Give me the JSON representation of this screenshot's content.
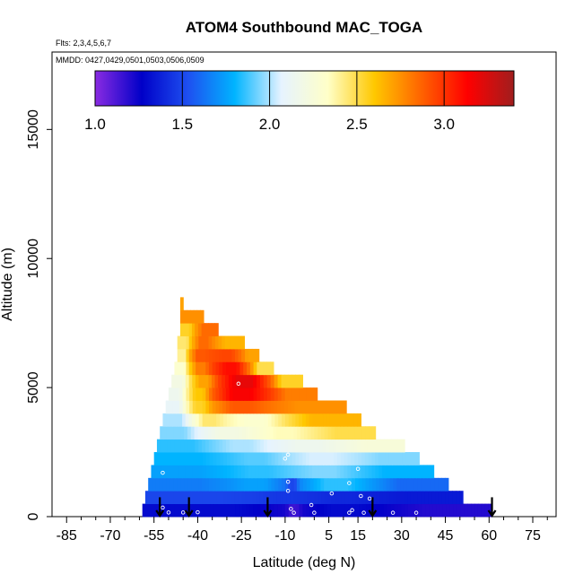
{
  "chart_data": {
    "type": "heatmap",
    "title": "ATOM4 Southbound MAC_TOGA",
    "annotations": {
      "flights": "Flts: 2,3,4,5,6,7",
      "dates": "MMDD: 0427,0429,0501,0503,0506,0509"
    },
    "xlabel": "Latitude (deg N)",
    "ylabel": "Altitude (m)",
    "xlim": [
      -90,
      83
    ],
    "ylim": [
      0,
      18000
    ],
    "x_ticks_major": [
      -85,
      -70,
      -55,
      -40,
      -25,
      -10,
      5,
      15,
      30,
      45,
      60,
      75
    ],
    "x_tick_labels": [
      "-85",
      "-70",
      "-55",
      "-40",
      "-25",
      "-10",
      "5",
      "15",
      "30",
      "45",
      "60",
      "75"
    ],
    "x_ticks_minor": [
      -80,
      -75,
      -65,
      -60,
      -50,
      -45,
      -35,
      -30,
      -20,
      -15,
      -5,
      0,
      10,
      20,
      25,
      35,
      40,
      50,
      55,
      65,
      70,
      80
    ],
    "y_ticks": [
      0,
      5000,
      10000,
      15000
    ],
    "y_tick_labels": [
      "0",
      "5000",
      "10000",
      "15000"
    ],
    "colorbar": {
      "min": 1.0,
      "max": 3.4,
      "ticks": [
        1.0,
        1.5,
        2.0,
        2.5,
        3.0
      ],
      "tick_labels": [
        "1.0",
        "1.5",
        "2.0",
        "2.5",
        "3.0"
      ],
      "colors": [
        "#8a2be2",
        "#0000c8",
        "#1e50f0",
        "#00b4ff",
        "#e6f3ff",
        "#ffffc8",
        "#ffc800",
        "#ff6400",
        "#ff0000",
        "#a01e1e"
      ]
    },
    "bands": [
      {
        "alt": [
          0,
          500
        ],
        "lat": [
          -59,
          61
        ],
        "segments": [
          {
            "lat": [
              -59,
              -10
            ],
            "value": 1.3
          },
          {
            "lat": [
              -10,
              -4
            ],
            "value": 1.15
          },
          {
            "lat": [
              -4,
              25
            ],
            "value": 1.3
          },
          {
            "lat": [
              25,
              61
            ],
            "value": 1.2
          }
        ]
      },
      {
        "alt": [
          500,
          1000
        ],
        "lat": [
          -58,
          51
        ],
        "segments": [
          {
            "lat": [
              -58,
              -20
            ],
            "value": 1.5
          },
          {
            "lat": [
              -20,
              0
            ],
            "value": 1.45
          },
          {
            "lat": [
              0,
              20
            ],
            "value": 1.4
          },
          {
            "lat": [
              20,
              51
            ],
            "value": 1.35
          }
        ]
      },
      {
        "alt": [
          1000,
          1500
        ],
        "lat": [
          -57,
          46
        ],
        "segments": [
          {
            "lat": [
              -57,
              -30
            ],
            "value": 1.65
          },
          {
            "lat": [
              -30,
              -10
            ],
            "value": 1.75
          },
          {
            "lat": [
              -10,
              -5
            ],
            "value": 1.5
          },
          {
            "lat": [
              -5,
              20
            ],
            "value": 1.85
          },
          {
            "lat": [
              20,
              46
            ],
            "value": 1.6
          }
        ]
      },
      {
        "alt": [
          1500,
          2000
        ],
        "lat": [
          -56,
          41
        ],
        "segments": [
          {
            "lat": [
              -56,
              -30
            ],
            "value": 1.75
          },
          {
            "lat": [
              -30,
              -8
            ],
            "value": 1.85
          },
          {
            "lat": [
              -8,
              15
            ],
            "value": 1.95
          },
          {
            "lat": [
              15,
              41
            ],
            "value": 1.8
          }
        ]
      },
      {
        "alt": [
          2000,
          2500
        ],
        "lat": [
          -55,
          36
        ],
        "segments": [
          {
            "lat": [
              -55,
              -30
            ],
            "value": 1.8
          },
          {
            "lat": [
              -30,
              -10
            ],
            "value": 1.9
          },
          {
            "lat": [
              -10,
              15
            ],
            "value": 2.05
          },
          {
            "lat": [
              15,
              36
            ],
            "value": 1.95
          }
        ]
      },
      {
        "alt": [
          2500,
          3000
        ],
        "lat": [
          -54,
          31
        ],
        "segments": [
          {
            "lat": [
              -54,
              -35
            ],
            "value": 1.85
          },
          {
            "lat": [
              -35,
              -15
            ],
            "value": 2.0
          },
          {
            "lat": [
              -15,
              10
            ],
            "value": 2.15
          },
          {
            "lat": [
              10,
              31
            ],
            "value": 2.25
          }
        ]
      },
      {
        "alt": [
          3000,
          3500
        ],
        "lat": [
          -53,
          21
        ],
        "segments": [
          {
            "lat": [
              -53,
              -40
            ],
            "value": 1.95
          },
          {
            "lat": [
              -40,
              -20
            ],
            "value": 2.2
          },
          {
            "lat": [
              -20,
              0
            ],
            "value": 2.35
          },
          {
            "lat": [
              0,
              21
            ],
            "value": 2.5
          }
        ]
      },
      {
        "alt": [
          3500,
          4000
        ],
        "lat": [
          -52,
          16
        ],
        "segments": [
          {
            "lat": [
              -52,
              -42
            ],
            "value": 2.0
          },
          {
            "lat": [
              -42,
              -30
            ],
            "value": 2.45
          },
          {
            "lat": [
              -30,
              -10
            ],
            "value": 2.3
          },
          {
            "lat": [
              -10,
              16
            ],
            "value": 2.65
          }
        ]
      },
      {
        "alt": [
          4000,
          4500
        ],
        "lat": [
          -51,
          11
        ],
        "segments": [
          {
            "lat": [
              -51,
              -44
            ],
            "value": 2.1
          },
          {
            "lat": [
              -44,
              -35
            ],
            "value": 2.55
          },
          {
            "lat": [
              -35,
              -15
            ],
            "value": 2.9
          },
          {
            "lat": [
              -15,
              11
            ],
            "value": 2.75
          }
        ]
      },
      {
        "alt": [
          4500,
          5000
        ],
        "lat": [
          -50,
          1
        ],
        "segments": [
          {
            "lat": [
              -50,
              -44
            ],
            "value": 2.15
          },
          {
            "lat": [
              -44,
              -35
            ],
            "value": 2.6
          },
          {
            "lat": [
              -35,
              -15
            ],
            "value": 3.15
          },
          {
            "lat": [
              -15,
              1
            ],
            "value": 2.8
          }
        ]
      },
      {
        "alt": [
          5000,
          5500
        ],
        "lat": [
          -49,
          -4
        ],
        "segments": [
          {
            "lat": [
              -49,
              -43
            ],
            "value": 2.2
          },
          {
            "lat": [
              -43,
              -33
            ],
            "value": 2.7
          },
          {
            "lat": [
              -33,
              -15
            ],
            "value": 3.2
          },
          {
            "lat": [
              -15,
              -4
            ],
            "value": 2.55
          }
        ]
      },
      {
        "alt": [
          5500,
          6000
        ],
        "lat": [
          -48,
          -14
        ],
        "segments": [
          {
            "lat": [
              -48,
              -43
            ],
            "value": 2.3
          },
          {
            "lat": [
              -43,
              -35
            ],
            "value": 2.8
          },
          {
            "lat": [
              -35,
              -22
            ],
            "value": 3.1
          },
          {
            "lat": [
              -22,
              -14
            ],
            "value": 2.5
          }
        ]
      },
      {
        "alt": [
          6000,
          6500
        ],
        "lat": [
          -47,
          -19
        ],
        "segments": [
          {
            "lat": [
              -47,
              -43
            ],
            "value": 2.4
          },
          {
            "lat": [
              -43,
              -35
            ],
            "value": 2.9
          },
          {
            "lat": [
              -35,
              -25
            ],
            "value": 2.95
          },
          {
            "lat": [
              -25,
              -19
            ],
            "value": 2.7
          }
        ]
      },
      {
        "alt": [
          6500,
          7000
        ],
        "lat": [
          -47,
          -24
        ],
        "segments": [
          {
            "lat": [
              -47,
              -42
            ],
            "value": 2.45
          },
          {
            "lat": [
              -42,
              -34
            ],
            "value": 2.85
          },
          {
            "lat": [
              -34,
              -24
            ],
            "value": 2.65
          }
        ]
      },
      {
        "alt": [
          7000,
          7500
        ],
        "lat": [
          -46,
          -33
        ],
        "segments": [
          {
            "lat": [
              -46,
              -41
            ],
            "value": 2.55
          },
          {
            "lat": [
              -41,
              -33
            ],
            "value": 2.85
          }
        ]
      },
      {
        "alt": [
          7500,
          8000
        ],
        "lat": [
          -46,
          -38
        ],
        "segments": [
          {
            "lat": [
              -46,
              -38
            ],
            "value": 2.75
          }
        ]
      },
      {
        "alt": [
          8000,
          8500
        ],
        "lat": [
          -46,
          -45
        ],
        "segments": [
          {
            "lat": [
              -46,
              -45
            ],
            "value": 2.7
          }
        ]
      }
    ],
    "markers": [
      {
        "lat": -52,
        "alt": 350
      },
      {
        "lat": -50,
        "alt": 160
      },
      {
        "lat": -45,
        "alt": 160
      },
      {
        "lat": -40,
        "alt": 170
      },
      {
        "lat": -52,
        "alt": 1700
      },
      {
        "lat": -26,
        "alt": 5150
      },
      {
        "lat": -10,
        "alt": 2250
      },
      {
        "lat": -9,
        "alt": 2400
      },
      {
        "lat": -9,
        "alt": 1350
      },
      {
        "lat": -9,
        "alt": 1000
      },
      {
        "lat": -8,
        "alt": 300
      },
      {
        "lat": -7,
        "alt": 150
      },
      {
        "lat": -1,
        "alt": 450
      },
      {
        "lat": 0,
        "alt": 150
      },
      {
        "lat": 6,
        "alt": 900
      },
      {
        "lat": 12,
        "alt": 150
      },
      {
        "lat": 12,
        "alt": 1300
      },
      {
        "lat": 13,
        "alt": 250
      },
      {
        "lat": 15,
        "alt": 1850
      },
      {
        "lat": 16,
        "alt": 800
      },
      {
        "lat": 17,
        "alt": 150
      },
      {
        "lat": 19,
        "alt": 700
      },
      {
        "lat": 27,
        "alt": 150
      },
      {
        "lat": 35,
        "alt": 150
      }
    ],
    "arrows": [
      {
        "lat": -53,
        "alt_top": 750
      },
      {
        "lat": -43,
        "alt_top": 750
      },
      {
        "lat": -16,
        "alt_top": 750
      },
      {
        "lat": 20,
        "alt_top": 750
      },
      {
        "lat": 61,
        "alt_top": 750
      }
    ]
  }
}
